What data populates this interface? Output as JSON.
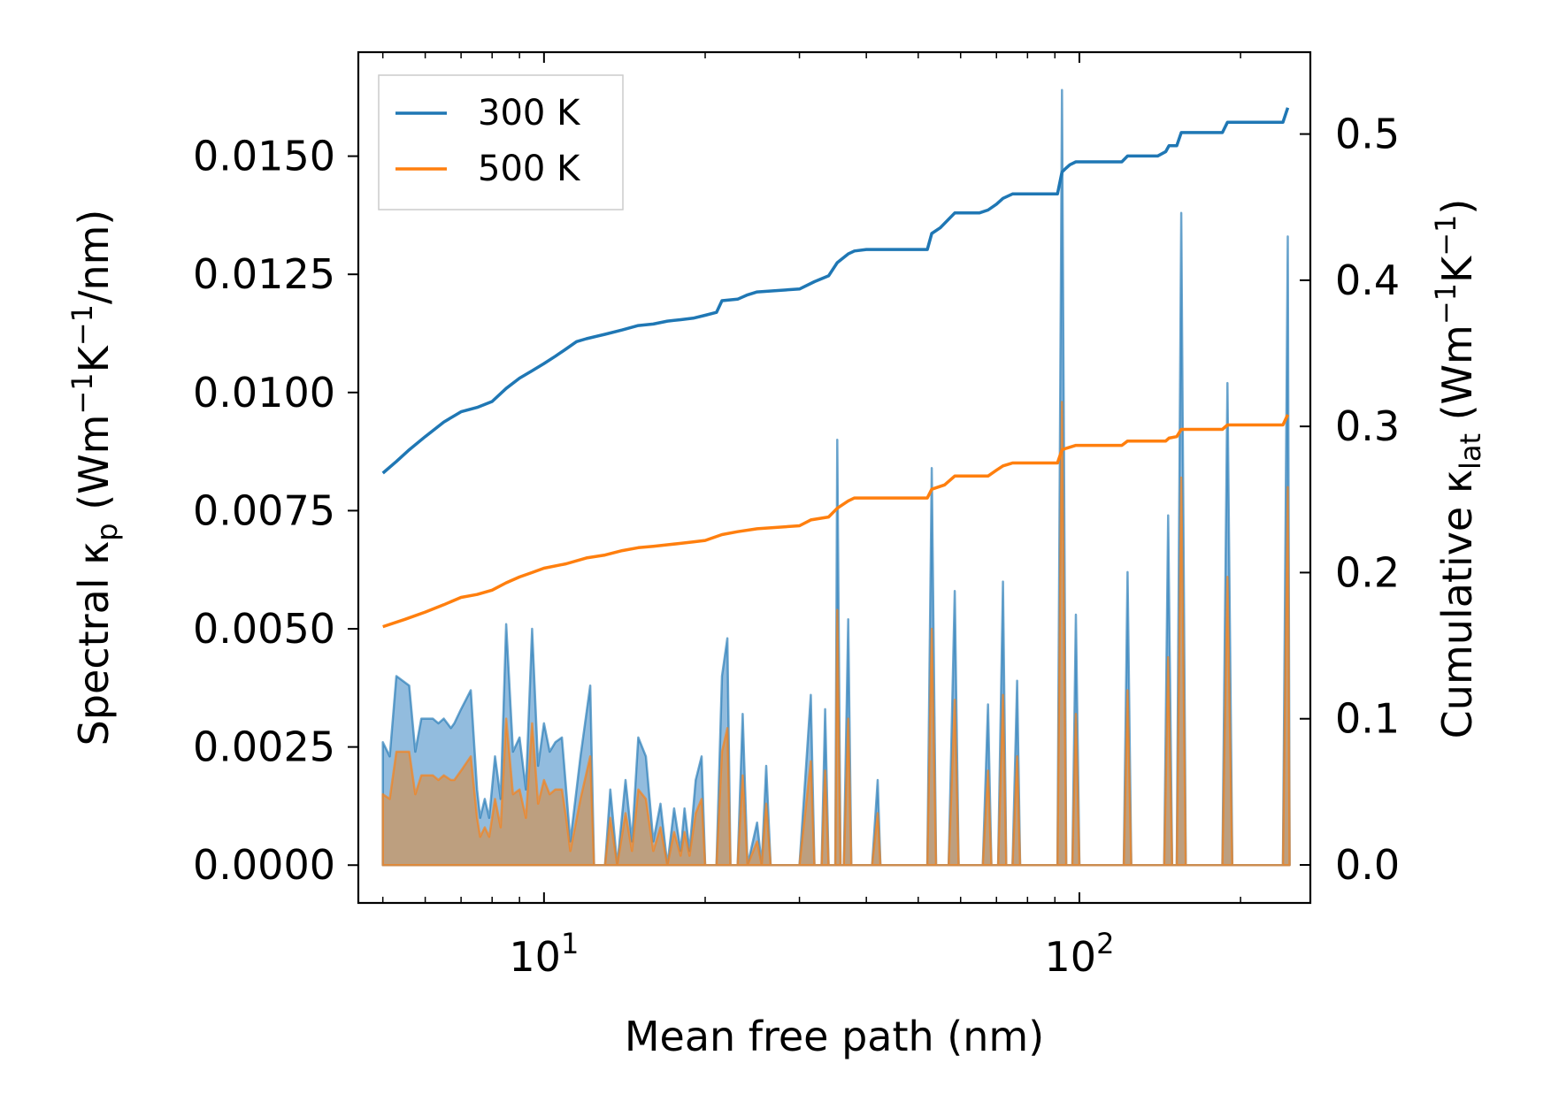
{
  "chart_data": {
    "type": "line",
    "title": "",
    "xlabel": "Mean free path (nm)",
    "ylabel_left": {
      "main": "Spectral κ",
      "sub": "p",
      "unit_open": " (Wm",
      "sup1": "−1",
      "k": "K",
      "sup2": "−1",
      "unit_close": "/nm)"
    },
    "ylabel_right": {
      "main": "Cumulative κ",
      "sub": "lat",
      "unit_open": " (Wm",
      "sup1": "−1",
      "k": "K",
      "sup2": "−1",
      "unit_close": ")"
    },
    "x_scale": "log",
    "xlim": [
      4.5,
      270
    ],
    "ylim_left": [
      -0.0008,
      0.0172
    ],
    "ylim_right": [
      -0.026,
      0.556
    ],
    "xticks": [
      {
        "value": 10,
        "base": "10",
        "exp": "1"
      },
      {
        "value": 100,
        "base": "10",
        "exp": "2"
      }
    ],
    "yticks_left": [
      "0.0000",
      "0.0025",
      "0.0050",
      "0.0075",
      "0.0100",
      "0.0125",
      "0.0150"
    ],
    "yticks_left_values": [
      0,
      0.0025,
      0.005,
      0.0075,
      0.01,
      0.0125,
      0.015
    ],
    "yticks_right": [
      "0.0",
      "0.1",
      "0.2",
      "0.3",
      "0.4",
      "0.5"
    ],
    "yticks_right_values": [
      0,
      0.1,
      0.2,
      0.3,
      0.4,
      0.5
    ],
    "legend": {
      "position": "top-left",
      "entries": [
        {
          "label": "300 K",
          "color": "#1f77b4"
        },
        {
          "label": "500 K",
          "color": "#ff7f0e"
        }
      ]
    },
    "colors": {
      "blue": "#1f77b4",
      "orange": "#ff7f0e",
      "blue_fill": "#7fb0d8",
      "orange_fill": "#c49a6e"
    },
    "spectral_300K": [
      [
        5,
        0.0026
      ],
      [
        5.15,
        0.0023
      ],
      [
        5.3,
        0.004
      ],
      [
        5.6,
        0.0038
      ],
      [
        5.75,
        0.0024
      ],
      [
        5.9,
        0.0031
      ],
      [
        6.2,
        0.0031
      ],
      [
        6.35,
        0.003
      ],
      [
        6.5,
        0.0031
      ],
      [
        6.7,
        0.0029
      ],
      [
        6.8,
        0.003
      ],
      [
        7.0,
        0.0033
      ],
      [
        7.3,
        0.0037
      ],
      [
        7.5,
        0.0016
      ],
      [
        7.6,
        0.001
      ],
      [
        7.75,
        0.0014
      ],
      [
        7.9,
        0.001
      ],
      [
        8.1,
        0.0023
      ],
      [
        8.3,
        0.0014
      ],
      [
        8.5,
        0.0051
      ],
      [
        8.75,
        0.0024
      ],
      [
        9.0,
        0.0027
      ],
      [
        9.25,
        0.0016
      ],
      [
        9.5,
        0.005
      ],
      [
        9.75,
        0.0021
      ],
      [
        10.0,
        0.003
      ],
      [
        10.25,
        0.0024
      ],
      [
        10.5,
        0.0026
      ],
      [
        10.8,
        0.0027
      ],
      [
        11.0,
        0.0016
      ],
      [
        11.2,
        0.0005
      ],
      [
        11.7,
        0.0023
      ],
      [
        12.2,
        0.0038
      ],
      [
        12.4,
        0.0
      ],
      [
        13.0,
        0.0
      ],
      [
        13.3,
        0.0016
      ],
      [
        13.7,
        0.0
      ],
      [
        14.2,
        0.0018
      ],
      [
        14.6,
        0.0005
      ],
      [
        15.0,
        0.0027
      ],
      [
        15.5,
        0.0023
      ],
      [
        16.0,
        0.0005
      ],
      [
        16.5,
        0.0013
      ],
      [
        17.0,
        0.0
      ],
      [
        17.5,
        0.0012
      ],
      [
        18.0,
        0.0003
      ],
      [
        18.3,
        0.0012
      ],
      [
        18.7,
        0.0003
      ],
      [
        19.2,
        0.0018
      ],
      [
        19.7,
        0.0023
      ],
      [
        20.0,
        0.0
      ],
      [
        21.0,
        0.0
      ],
      [
        21.5,
        0.004
      ],
      [
        22.0,
        0.0048
      ],
      [
        22.3,
        0.0
      ],
      [
        23.0,
        0.0
      ],
      [
        23.5,
        0.0032
      ],
      [
        24.0,
        0.0
      ],
      [
        25.0,
        0.0009
      ],
      [
        25.5,
        0.0
      ],
      [
        26.0,
        0.0021
      ],
      [
        26.5,
        0.0
      ],
      [
        30.0,
        0.0
      ],
      [
        31.5,
        0.0036
      ],
      [
        32.0,
        0.0
      ],
      [
        33.0,
        0.0
      ],
      [
        33.5,
        0.0033
      ],
      [
        34.0,
        0.0
      ],
      [
        35.0,
        0.0
      ],
      [
        35.3,
        0.009
      ],
      [
        35.8,
        0.0
      ],
      [
        36.3,
        0.0
      ],
      [
        37.0,
        0.0052
      ],
      [
        37.5,
        0.0
      ],
      [
        41.0,
        0.0
      ],
      [
        42.0,
        0.0018
      ],
      [
        42.5,
        0.0
      ],
      [
        52.0,
        0.0
      ],
      [
        53.0,
        0.0084
      ],
      [
        54.0,
        0.0
      ],
      [
        57.0,
        0.0
      ],
      [
        58.5,
        0.0058
      ],
      [
        59.5,
        0.0
      ],
      [
        66.0,
        0.0
      ],
      [
        67.5,
        0.0034
      ],
      [
        68.5,
        0.0
      ],
      [
        70.5,
        0.0
      ],
      [
        72.0,
        0.006
      ],
      [
        73.0,
        0.0
      ],
      [
        75.0,
        0.0
      ],
      [
        76.5,
        0.0039
      ],
      [
        77.5,
        0.0
      ],
      [
        91.0,
        0.0
      ],
      [
        92.8,
        0.0164
      ],
      [
        94.5,
        0.0
      ],
      [
        97.0,
        0.0
      ],
      [
        98.5,
        0.0053
      ],
      [
        100.0,
        0.0
      ],
      [
        121.0,
        0.0
      ],
      [
        123.0,
        0.0062
      ],
      [
        125.0,
        0.0
      ],
      [
        144.0,
        0.0
      ],
      [
        146.5,
        0.0074
      ],
      [
        149.0,
        0.0
      ],
      [
        152.0,
        0.0
      ],
      [
        155.0,
        0.0138
      ],
      [
        158.0,
        0.0
      ],
      [
        185.0,
        0.0
      ],
      [
        189.0,
        0.0102
      ],
      [
        193.0,
        0.0
      ],
      [
        240.0,
        0.0
      ],
      [
        245.0,
        0.0133
      ],
      [
        247.0,
        0.0
      ]
    ],
    "spectral_500K": [
      [
        5,
        0.0015
      ],
      [
        5.15,
        0.0014
      ],
      [
        5.3,
        0.0024
      ],
      [
        5.6,
        0.0024
      ],
      [
        5.75,
        0.0015
      ],
      [
        5.9,
        0.0019
      ],
      [
        6.2,
        0.0019
      ],
      [
        6.35,
        0.0018
      ],
      [
        6.5,
        0.0019
      ],
      [
        6.7,
        0.0018
      ],
      [
        6.8,
        0.0018
      ],
      [
        7.0,
        0.002
      ],
      [
        7.3,
        0.0023
      ],
      [
        7.5,
        0.001
      ],
      [
        7.6,
        0.0006
      ],
      [
        7.75,
        0.0008
      ],
      [
        7.9,
        0.0006
      ],
      [
        8.1,
        0.0014
      ],
      [
        8.3,
        0.0008
      ],
      [
        8.5,
        0.0031
      ],
      [
        8.75,
        0.0015
      ],
      [
        9.0,
        0.0016
      ],
      [
        9.25,
        0.001
      ],
      [
        9.5,
        0.003
      ],
      [
        9.75,
        0.0013
      ],
      [
        10.0,
        0.0018
      ],
      [
        10.25,
        0.0015
      ],
      [
        10.5,
        0.0016
      ],
      [
        10.8,
        0.0016
      ],
      [
        11.0,
        0.001
      ],
      [
        11.2,
        0.0003
      ],
      [
        11.7,
        0.0014
      ],
      [
        12.2,
        0.0023
      ],
      [
        12.4,
        0.0
      ],
      [
        13.0,
        0.0
      ],
      [
        13.3,
        0.001
      ],
      [
        13.7,
        0.0
      ],
      [
        14.2,
        0.0011
      ],
      [
        14.6,
        0.0003
      ],
      [
        15.0,
        0.0016
      ],
      [
        15.5,
        0.0014
      ],
      [
        16.0,
        0.0003
      ],
      [
        16.5,
        0.0008
      ],
      [
        17.0,
        0.0
      ],
      [
        17.5,
        0.0007
      ],
      [
        18.0,
        0.0002
      ],
      [
        18.3,
        0.0007
      ],
      [
        18.7,
        0.0002
      ],
      [
        19.2,
        0.0011
      ],
      [
        19.7,
        0.0014
      ],
      [
        20.0,
        0.0
      ],
      [
        21.0,
        0.0
      ],
      [
        21.5,
        0.0024
      ],
      [
        22.0,
        0.0029
      ],
      [
        22.3,
        0.0
      ],
      [
        23.0,
        0.0
      ],
      [
        23.5,
        0.0019
      ],
      [
        24.0,
        0.0
      ],
      [
        25.0,
        0.0005
      ],
      [
        25.5,
        0.0
      ],
      [
        26.0,
        0.0013
      ],
      [
        26.5,
        0.0
      ],
      [
        30.0,
        0.0
      ],
      [
        31.5,
        0.0022
      ],
      [
        32.0,
        0.0
      ],
      [
        33.0,
        0.0
      ],
      [
        33.5,
        0.002
      ],
      [
        34.0,
        0.0
      ],
      [
        35.0,
        0.0
      ],
      [
        35.3,
        0.0054
      ],
      [
        35.8,
        0.0
      ],
      [
        36.3,
        0.0
      ],
      [
        37.0,
        0.0031
      ],
      [
        37.5,
        0.0
      ],
      [
        41.0,
        0.0
      ],
      [
        42.0,
        0.0011
      ],
      [
        42.5,
        0.0
      ],
      [
        52.0,
        0.0
      ],
      [
        53.0,
        0.005
      ],
      [
        54.0,
        0.0
      ],
      [
        57.0,
        0.0
      ],
      [
        58.5,
        0.0035
      ],
      [
        59.5,
        0.0
      ],
      [
        66.0,
        0.0
      ],
      [
        67.5,
        0.002
      ],
      [
        68.5,
        0.0
      ],
      [
        70.5,
        0.0
      ],
      [
        72.0,
        0.0036
      ],
      [
        73.0,
        0.0
      ],
      [
        75.0,
        0.0
      ],
      [
        76.5,
        0.0023
      ],
      [
        77.5,
        0.0
      ],
      [
        91.0,
        0.0
      ],
      [
        92.8,
        0.0098
      ],
      [
        94.5,
        0.0
      ],
      [
        97.0,
        0.0
      ],
      [
        98.5,
        0.0032
      ],
      [
        100.0,
        0.0
      ],
      [
        121.0,
        0.0
      ],
      [
        123.0,
        0.0037
      ],
      [
        125.0,
        0.0
      ],
      [
        144.0,
        0.0
      ],
      [
        146.5,
        0.0044
      ],
      [
        149.0,
        0.0
      ],
      [
        152.0,
        0.0
      ],
      [
        155.0,
        0.0082
      ],
      [
        158.0,
        0.0
      ],
      [
        185.0,
        0.0
      ],
      [
        189.0,
        0.0061
      ],
      [
        193.0,
        0.0
      ],
      [
        240.0,
        0.0
      ],
      [
        245.0,
        0.008
      ],
      [
        247.0,
        0.0
      ]
    ],
    "cumulative_300K": [
      [
        5,
        0.268
      ],
      [
        5.3,
        0.276
      ],
      [
        5.6,
        0.284
      ],
      [
        6.0,
        0.293
      ],
      [
        6.5,
        0.303
      ],
      [
        7.0,
        0.31
      ],
      [
        7.5,
        0.313
      ],
      [
        8.0,
        0.317
      ],
      [
        8.5,
        0.326
      ],
      [
        9.0,
        0.333
      ],
      [
        9.5,
        0.338
      ],
      [
        10.0,
        0.343
      ],
      [
        10.5,
        0.348
      ],
      [
        11.0,
        0.353
      ],
      [
        11.5,
        0.358
      ],
      [
        12.0,
        0.36
      ],
      [
        13.0,
        0.363
      ],
      [
        14.0,
        0.366
      ],
      [
        15.0,
        0.369
      ],
      [
        16.0,
        0.37
      ],
      [
        17.0,
        0.372
      ],
      [
        18.0,
        0.373
      ],
      [
        19.0,
        0.374
      ],
      [
        20.0,
        0.376
      ],
      [
        21.0,
        0.378
      ],
      [
        21.5,
        0.386
      ],
      [
        23.0,
        0.387
      ],
      [
        24.0,
        0.39
      ],
      [
        25.0,
        0.392
      ],
      [
        30.0,
        0.394
      ],
      [
        32.0,
        0.399
      ],
      [
        34.0,
        0.403
      ],
      [
        35.3,
        0.412
      ],
      [
        37.0,
        0.418
      ],
      [
        38.0,
        0.42
      ],
      [
        40.0,
        0.421
      ],
      [
        42.0,
        0.421
      ],
      [
        45.0,
        0.421
      ],
      [
        50.0,
        0.421
      ],
      [
        52.0,
        0.421
      ],
      [
        53.0,
        0.432
      ],
      [
        55.0,
        0.436
      ],
      [
        58.5,
        0.446
      ],
      [
        65.0,
        0.446
      ],
      [
        67.5,
        0.448
      ],
      [
        70.0,
        0.452
      ],
      [
        72.0,
        0.456
      ],
      [
        75.0,
        0.459
      ],
      [
        91.0,
        0.459
      ],
      [
        92.8,
        0.474
      ],
      [
        94.0,
        0.476
      ],
      [
        96.0,
        0.479
      ],
      [
        98.5,
        0.481
      ],
      [
        120.0,
        0.481
      ],
      [
        123.0,
        0.485
      ],
      [
        140.0,
        0.485
      ],
      [
        145.0,
        0.488
      ],
      [
        147.0,
        0.492
      ],
      [
        152.0,
        0.492
      ],
      [
        155.0,
        0.501
      ],
      [
        185.0,
        0.501
      ],
      [
        189.0,
        0.508
      ],
      [
        240.0,
        0.508
      ],
      [
        245.0,
        0.518
      ]
    ],
    "cumulative_500K": [
      [
        5,
        0.163
      ],
      [
        5.5,
        0.168
      ],
      [
        6.0,
        0.173
      ],
      [
        6.5,
        0.178
      ],
      [
        7.0,
        0.183
      ],
      [
        7.5,
        0.185
      ],
      [
        8.0,
        0.188
      ],
      [
        8.5,
        0.193
      ],
      [
        9.0,
        0.197
      ],
      [
        9.5,
        0.2
      ],
      [
        10.0,
        0.203
      ],
      [
        11.0,
        0.206
      ],
      [
        12.0,
        0.21
      ],
      [
        13.0,
        0.212
      ],
      [
        14.0,
        0.215
      ],
      [
        15.0,
        0.217
      ],
      [
        16.0,
        0.218
      ],
      [
        17.0,
        0.219
      ],
      [
        18.0,
        0.22
      ],
      [
        19.0,
        0.221
      ],
      [
        20.0,
        0.222
      ],
      [
        21.5,
        0.226
      ],
      [
        23.0,
        0.228
      ],
      [
        25.0,
        0.23
      ],
      [
        30.0,
        0.232
      ],
      [
        31.5,
        0.236
      ],
      [
        34.0,
        0.238
      ],
      [
        35.3,
        0.244
      ],
      [
        37.0,
        0.249
      ],
      [
        38.0,
        0.251
      ],
      [
        42.0,
        0.251
      ],
      [
        52.0,
        0.251
      ],
      [
        53.0,
        0.257
      ],
      [
        56.0,
        0.26
      ],
      [
        58.5,
        0.266
      ],
      [
        67.5,
        0.266
      ],
      [
        70.0,
        0.27
      ],
      [
        72.0,
        0.273
      ],
      [
        75.0,
        0.275
      ],
      [
        91.0,
        0.275
      ],
      [
        92.8,
        0.284
      ],
      [
        94.5,
        0.285
      ],
      [
        98.5,
        0.287
      ],
      [
        120.0,
        0.287
      ],
      [
        123.0,
        0.29
      ],
      [
        145.0,
        0.29
      ],
      [
        147.0,
        0.292
      ],
      [
        152.0,
        0.293
      ],
      [
        155.0,
        0.298
      ],
      [
        185.0,
        0.298
      ],
      [
        189.0,
        0.301
      ],
      [
        240.0,
        0.301
      ],
      [
        245.0,
        0.308
      ]
    ]
  }
}
